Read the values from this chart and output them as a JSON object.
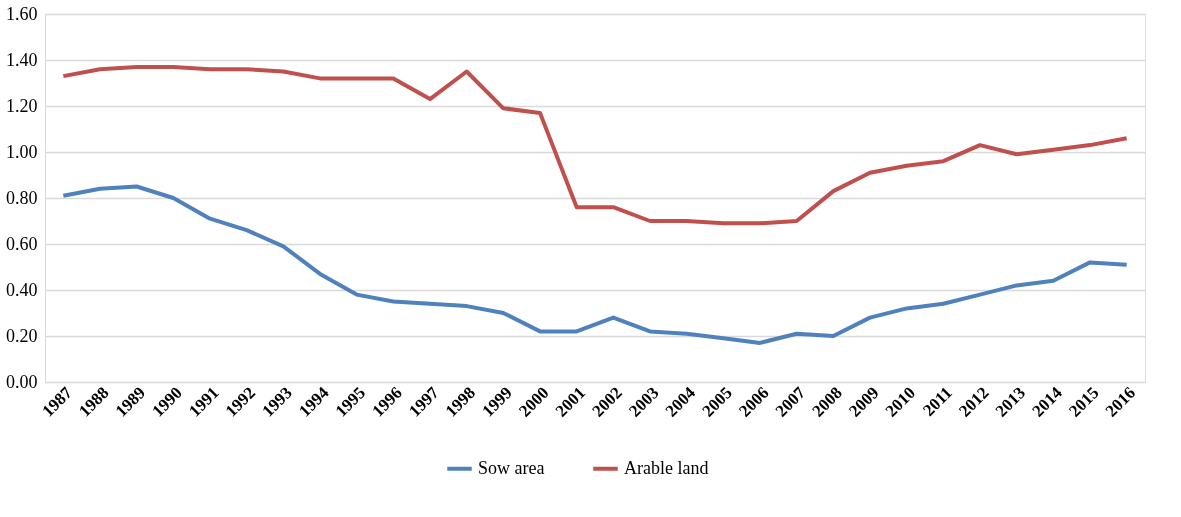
{
  "chart_data": {
    "type": "line",
    "categories": [
      "1987",
      "1988",
      "1989",
      "1990",
      "1991",
      "1992",
      "1993",
      "1994",
      "1995",
      "1996",
      "1997",
      "1998",
      "1999",
      "2000",
      "2001",
      "2002",
      "2003",
      "2004",
      "2005",
      "2006",
      "2007",
      "2008",
      "2009",
      "2010",
      "2011",
      "2012",
      "2013",
      "2014",
      "2015",
      "2016"
    ],
    "series": [
      {
        "name": "Sow area",
        "color": "#4f81bd",
        "values": [
          0.81,
          0.84,
          0.85,
          0.8,
          0.71,
          0.66,
          0.59,
          0.47,
          0.38,
          0.35,
          0.34,
          0.33,
          0.3,
          0.22,
          0.22,
          0.28,
          0.22,
          0.21,
          0.19,
          0.17,
          0.21,
          0.2,
          0.28,
          0.32,
          0.34,
          0.38,
          0.42,
          0.44,
          0.52,
          0.51
        ]
      },
      {
        "name": "Arable land",
        "color": "#c0504d",
        "values": [
          1.33,
          1.36,
          1.37,
          1.37,
          1.36,
          1.36,
          1.35,
          1.32,
          1.32,
          1.32,
          1.23,
          1.35,
          1.19,
          1.17,
          0.76,
          0.76,
          0.7,
          0.7,
          0.69,
          0.69,
          0.7,
          0.83,
          0.91,
          0.94,
          0.96,
          1.03,
          0.99,
          1.01,
          1.03,
          1.06
        ]
      }
    ],
    "ylim": [
      0,
      1.6
    ],
    "yticks": [
      {
        "value": 0,
        "label": "0.00"
      },
      {
        "value": 0.2,
        "label": "0.20"
      },
      {
        "value": 0.4,
        "label": "0.40"
      },
      {
        "value": 0.6,
        "label": "0.60"
      },
      {
        "value": 0.8,
        "label": "0.80"
      },
      {
        "value": 1.0,
        "label": "1.00"
      },
      {
        "value": 1.2,
        "label": "1.20"
      },
      {
        "value": 1.4,
        "label": "1.40"
      },
      {
        "value": 1.6,
        "label": "1.60"
      }
    ],
    "grid": "y",
    "legend": "bottom",
    "marker": "none",
    "line_style": "solid"
  }
}
